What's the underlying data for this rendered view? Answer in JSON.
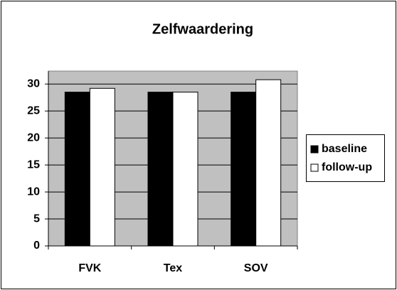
{
  "chart_data": {
    "type": "bar",
    "title": "Zelfwaardering",
    "categories": [
      "FVK",
      "Tex",
      "SOV"
    ],
    "series": [
      {
        "name": "baseline",
        "color": "#000000",
        "values": [
          28.5,
          28.5,
          28.5
        ]
      },
      {
        "name": "follow-up",
        "color": "#ffffff",
        "values": [
          29.2,
          28.5,
          30.8
        ]
      }
    ],
    "ylim": [
      0,
      32.4
    ],
    "yticks": [
      0,
      5,
      10,
      15,
      20,
      25,
      30
    ],
    "grid": true,
    "legend": "right"
  }
}
